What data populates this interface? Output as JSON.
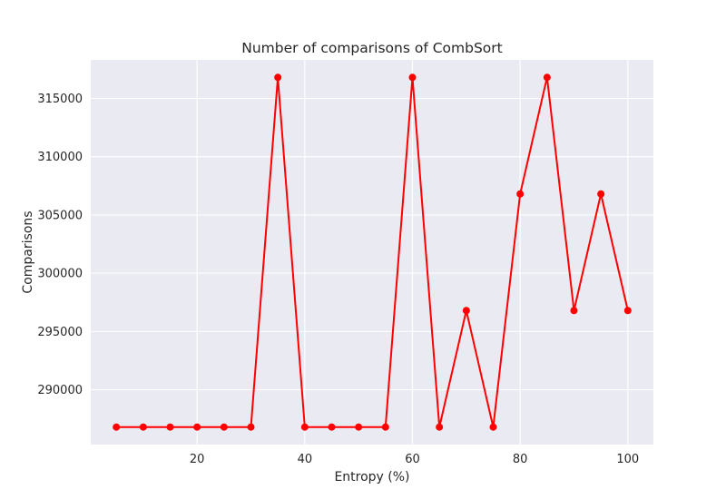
{
  "chart_data": {
    "type": "line",
    "title": "Number of comparisons of CombSort",
    "xlabel": "Entropy (%)",
    "ylabel": "Comparisons",
    "x": [
      5,
      10,
      15,
      20,
      25,
      30,
      35,
      40,
      45,
      50,
      55,
      60,
      65,
      70,
      75,
      80,
      85,
      90,
      95,
      100
    ],
    "series": [
      {
        "values": [
          286800,
          286800,
          286800,
          286800,
          286800,
          286800,
          316800,
          286800,
          286800,
          286800,
          286800,
          316800,
          286800,
          296800,
          286800,
          306800,
          316800,
          296800,
          306800,
          296800
        ]
      }
    ],
    "xlim": [
      0.25,
      104.75
    ],
    "ylim": [
      285300,
      318300
    ],
    "xticks": [
      20,
      40,
      60,
      80,
      100
    ],
    "xtick_labels": [
      "20",
      "40",
      "60",
      "80",
      "100"
    ],
    "yticks": [
      290000,
      295000,
      300000,
      305000,
      310000,
      315000
    ],
    "ytick_labels": [
      "290000",
      "295000",
      "300000",
      "305000",
      "310000",
      "315000"
    ],
    "grid": true,
    "colors": {
      "line": "#ff0000",
      "plot_background": "#eaeaf2",
      "grid": "#ffffff",
      "text": "#262626"
    }
  }
}
